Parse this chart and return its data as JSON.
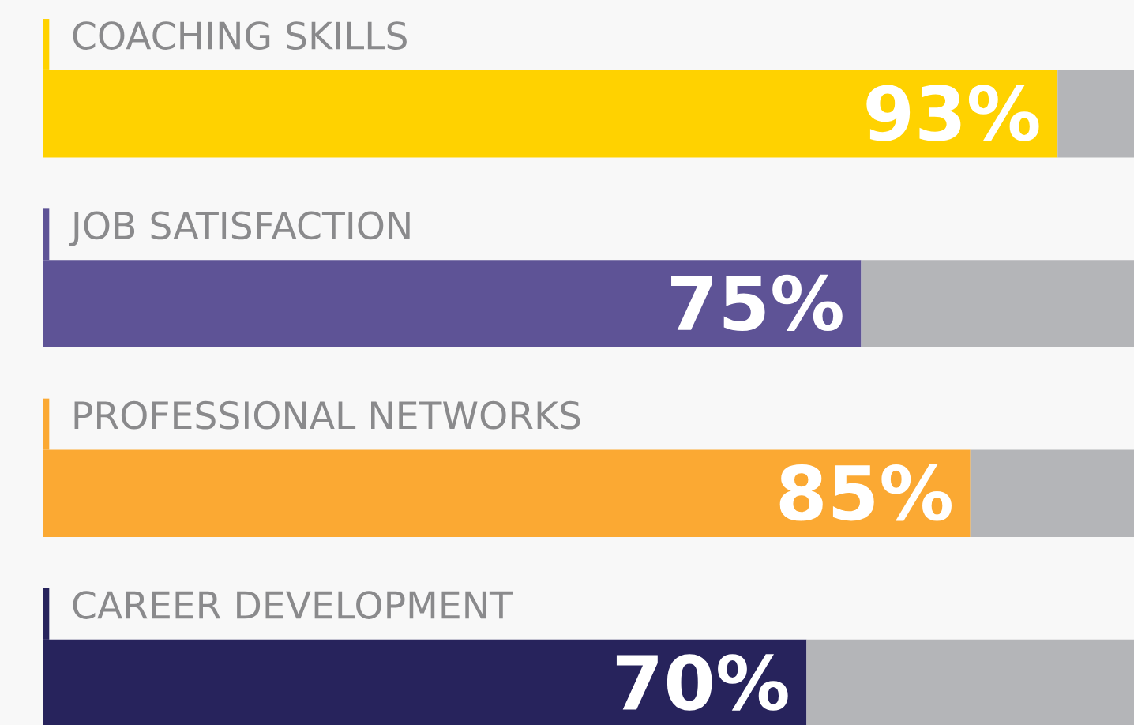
{
  "chart_data": {
    "type": "bar",
    "orientation": "horizontal",
    "stacked": true,
    "categories": [
      "COACHING SKILLS",
      "JOB SATISFACTION",
      "PROFESSIONAL NETWORKS",
      "CAREER DEVELOPMENT"
    ],
    "series": [
      {
        "colors": [
          "#ffd200",
          "#5e5396",
          "#fba933",
          "#27235c"
        ],
        "values": [
          93,
          75,
          85,
          70
        ],
        "value_labels": [
          "93%",
          "75%",
          "85%",
          "70%"
        ]
      },
      {
        "color": "#b4b5b8",
        "values": [
          7,
          25,
          15,
          30
        ]
      }
    ],
    "xlim": [
      0,
      100
    ]
  }
}
